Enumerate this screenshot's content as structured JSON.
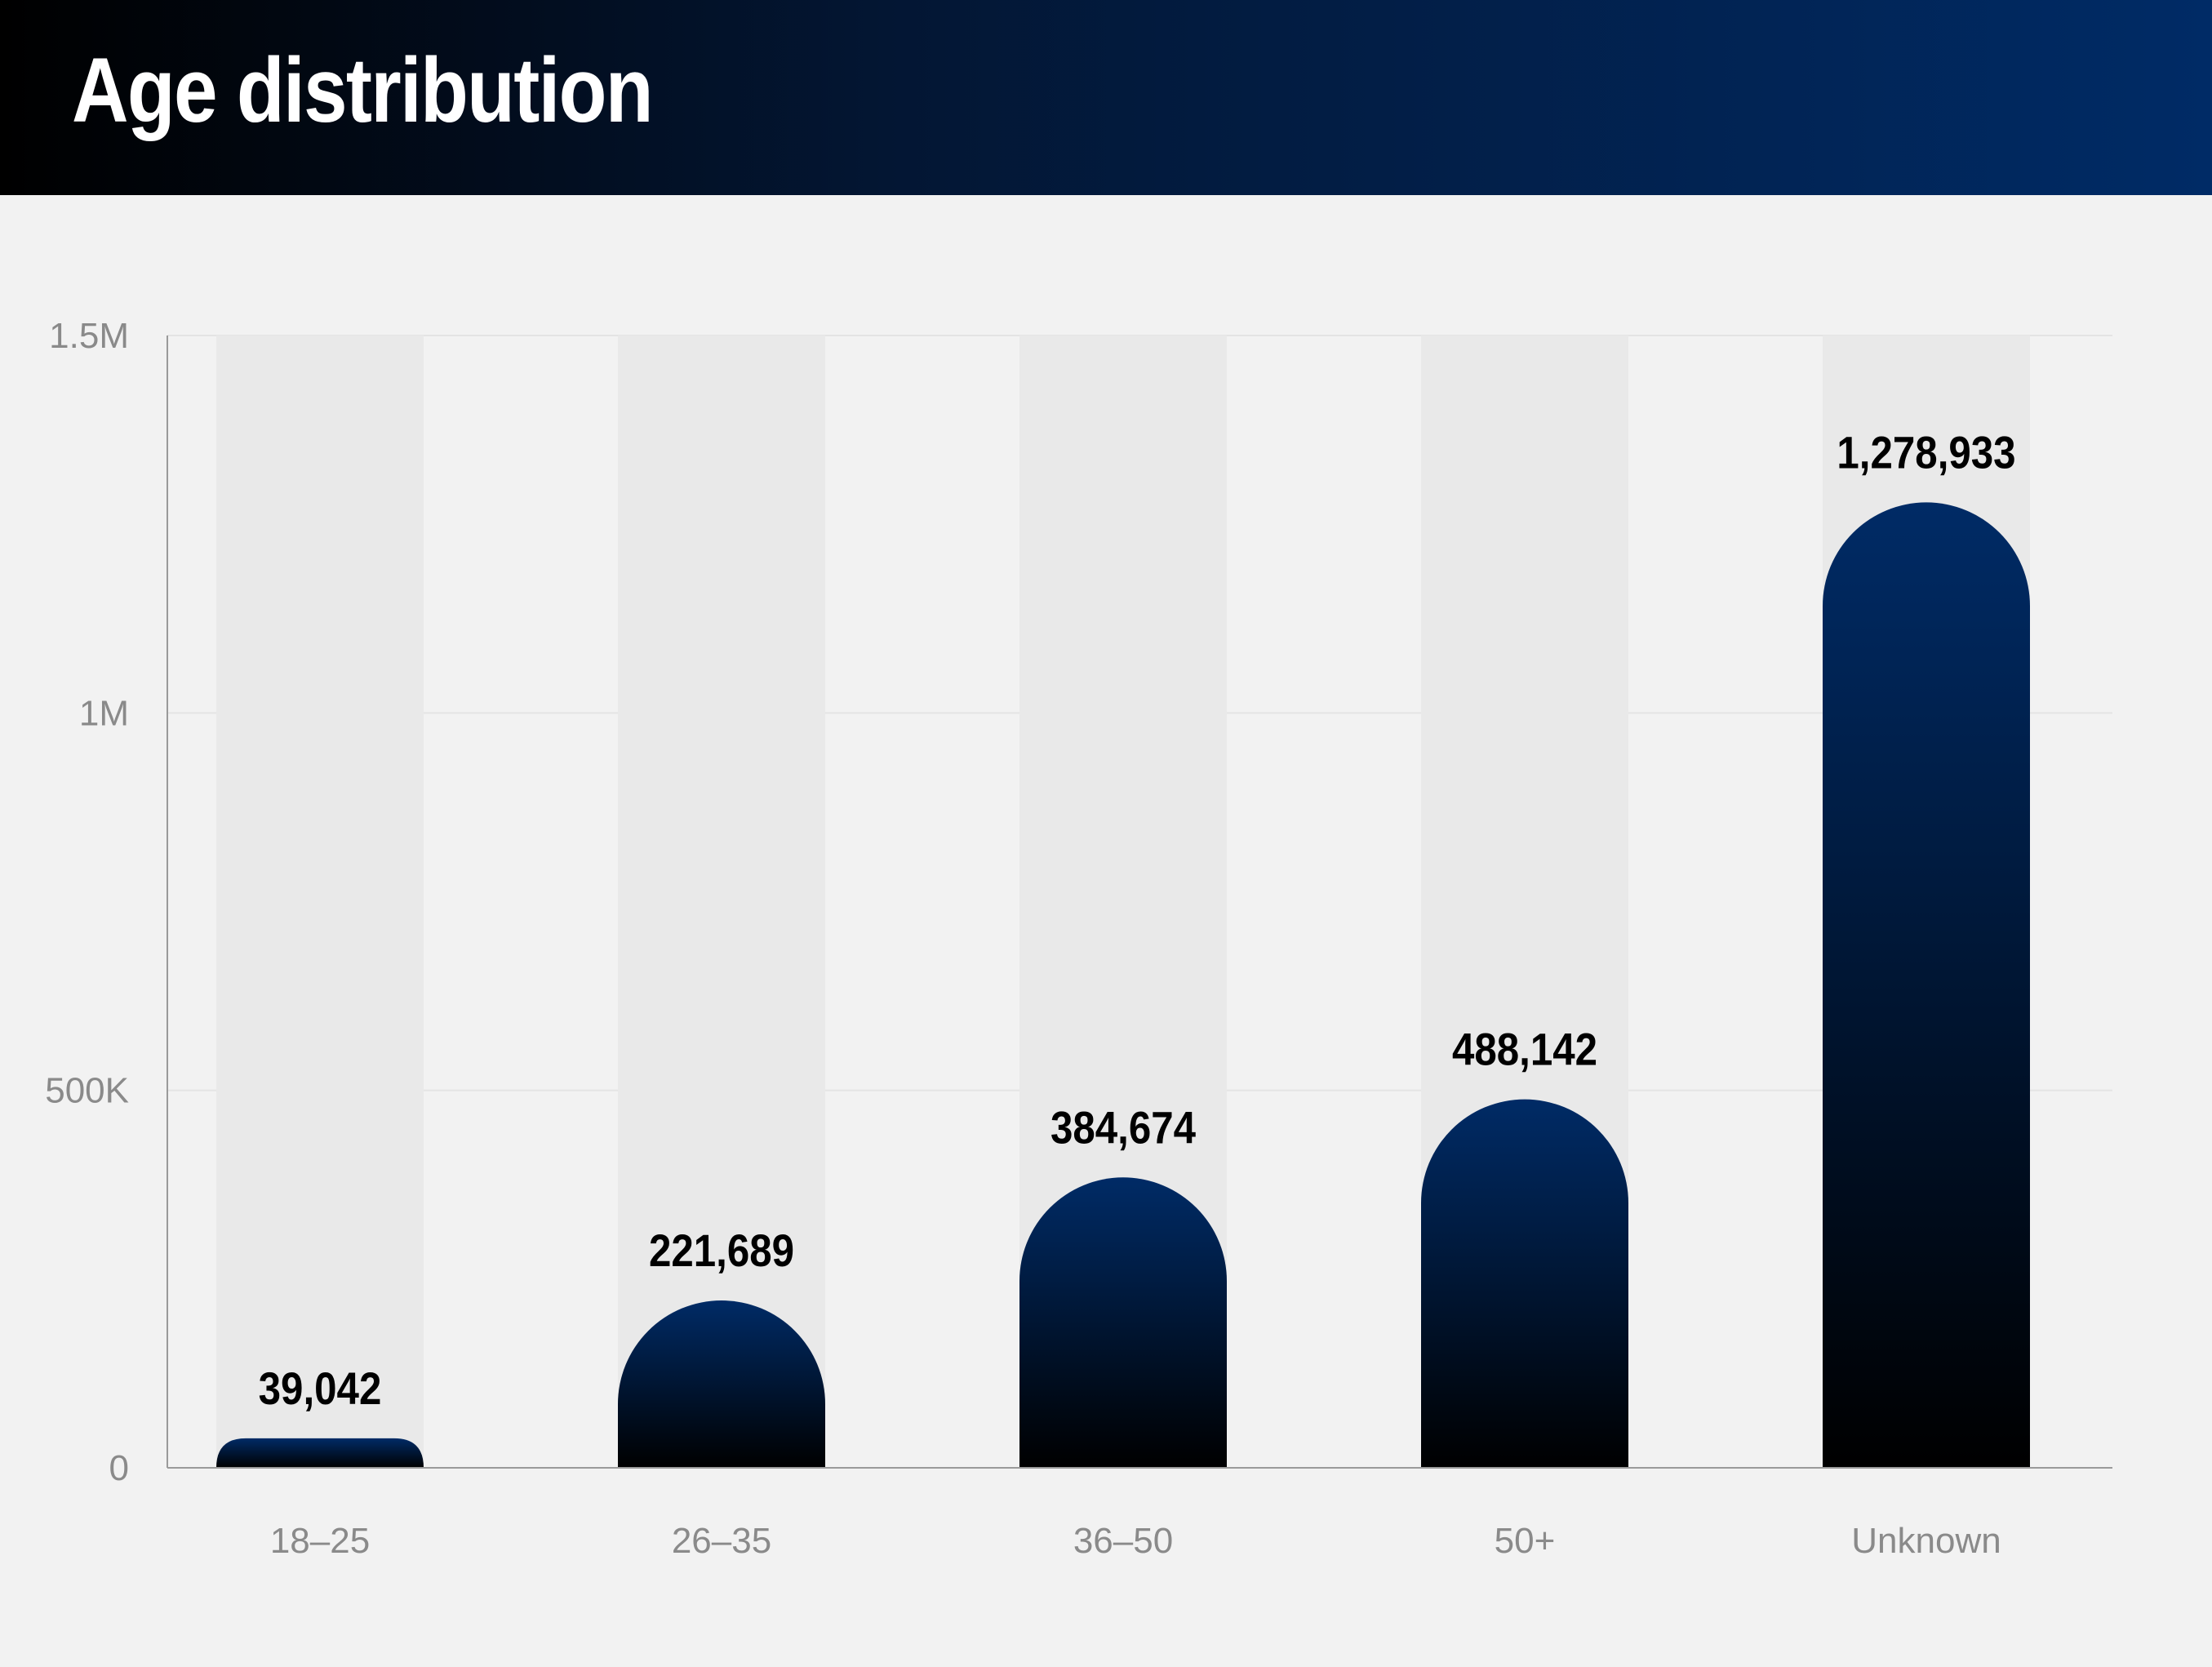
{
  "header": {
    "title": "Age distribution"
  },
  "colors": {
    "header_start": "#000000",
    "header_end": "#002b66",
    "bar_top": "#002b66",
    "bar_bottom": "#000000",
    "track": "#e9e9e9",
    "background": "#f2f2f2",
    "tick_text": "#8a8a8a"
  },
  "chart_data": {
    "type": "bar",
    "title": "Age distribution",
    "xlabel": "",
    "ylabel": "",
    "categories": [
      "18–25",
      "26–35",
      "36–50",
      "50+",
      "Unknown"
    ],
    "values": [
      39042,
      221689,
      384674,
      488142,
      1278933
    ],
    "value_labels": [
      "39,042",
      "221,689",
      "384,674",
      "488,142",
      "1,278,933"
    ],
    "ylim": [
      0,
      1500000
    ],
    "yticks": [
      0,
      500000,
      1000000,
      1500000
    ],
    "ytick_labels": [
      "0",
      "500K",
      "1M",
      "1.5M"
    ],
    "grid": true,
    "legend": "none"
  }
}
